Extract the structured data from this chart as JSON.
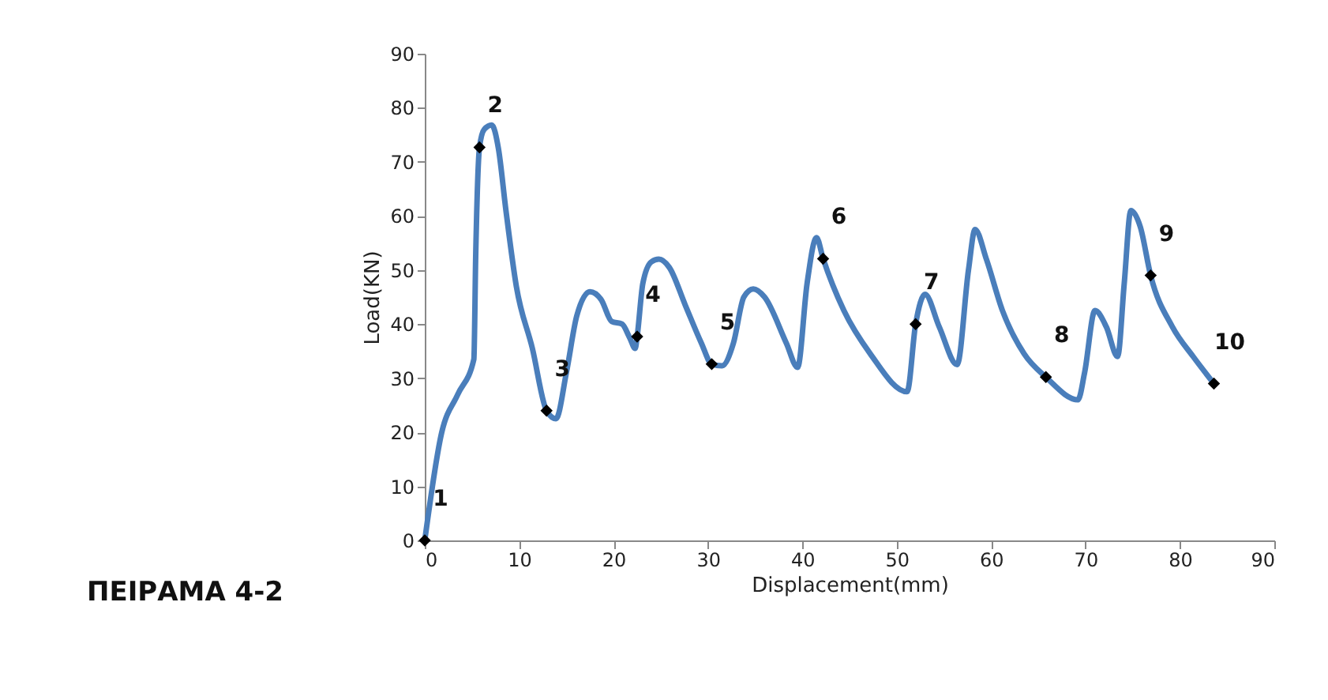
{
  "chart_data": {
    "type": "line",
    "title": "ΠΕΙΡΑΜΑ 4-2",
    "xlabel": "Displacement(mm)",
    "ylabel": "Load(KN)",
    "xlim": [
      0,
      90
    ],
    "xticks": [
      0,
      10,
      20,
      30,
      40,
      50,
      60,
      70,
      80,
      90
    ],
    "ylim": [
      0,
      90
    ],
    "yticks": [
      0,
      10,
      20,
      30,
      40,
      50,
      60,
      70,
      80,
      90
    ],
    "grid": false,
    "series": [
      {
        "type": "line",
        "color": "#4a7ebb",
        "marker": "none",
        "line_style": "solid",
        "x": [
          0,
          1.8,
          3.5,
          5.2,
          5.4,
          5.8,
          6.3,
          7.1,
          7.8,
          8.6,
          9.7,
          11.4,
          12.9,
          13.9,
          15.0,
          16.1,
          17.5,
          18.7,
          19.8,
          20.9,
          21.7,
          22.3,
          22.5,
          23.1,
          24.0,
          24.8,
          25.9,
          27.6,
          29.3,
          30.4,
          31.5,
          32.7,
          33.8,
          34.8,
          36.0,
          38.3,
          39.5,
          40.5,
          41.5,
          42.2,
          44.4,
          47.2,
          51.1,
          52.0,
          53.0,
          54.5,
          56.4,
          57.6,
          58.3,
          59.5,
          61.2,
          63.5,
          65.8,
          69.2,
          69.9,
          71.0,
          72.2,
          73.4,
          74.1,
          74.8,
          75.8,
          76.9,
          79.2,
          81.4,
          83.6
        ],
        "values": [
          0,
          20,
          27,
          33.5,
          53,
          72.7,
          76,
          76.8,
          72.5,
          61,
          47,
          35.5,
          24,
          22.5,
          31,
          41.5,
          46,
          44.5,
          40.5,
          40,
          37.5,
          35.5,
          37.7,
          47.5,
          51.5,
          52,
          50.5,
          43.5,
          36.5,
          32.6,
          32.3,
          36.5,
          45,
          46.5,
          45,
          36.5,
          32,
          47.5,
          56,
          52.1,
          42.5,
          34.5,
          27.5,
          40,
          45.5,
          39.5,
          32.5,
          50,
          57.5,
          52,
          42.5,
          34.5,
          30.2,
          26,
          31,
          42.5,
          39.5,
          34,
          47.5,
          61,
          58,
          49,
          39.5,
          34,
          29
        ]
      },
      {
        "type": "scatter",
        "color": "#000000",
        "marker": "diamond",
        "x": [
          0,
          5.8,
          12.9,
          22.5,
          30.4,
          42.2,
          52.0,
          65.8,
          76.9,
          83.6
        ],
        "values": [
          0,
          72.7,
          24,
          37.7,
          32.6,
          52.1,
          40,
          30.2,
          49,
          29
        ]
      }
    ],
    "annotations": [
      {
        "text": "1",
        "x": 0,
        "y": 0
      },
      {
        "text": "2",
        "x": 5.8,
        "y": 72.7
      },
      {
        "text": "3",
        "x": 12.9,
        "y": 24
      },
      {
        "text": "4",
        "x": 22.5,
        "y": 37.7
      },
      {
        "text": "5",
        "x": 30.4,
        "y": 32.6
      },
      {
        "text": "6",
        "x": 42.2,
        "y": 52.1
      },
      {
        "text": "7",
        "x": 52.0,
        "y": 40
      },
      {
        "text": "8",
        "x": 65.8,
        "y": 30.2
      },
      {
        "text": "9",
        "x": 76.9,
        "y": 49
      },
      {
        "text": "10",
        "x": 83.6,
        "y": 29
      }
    ]
  }
}
